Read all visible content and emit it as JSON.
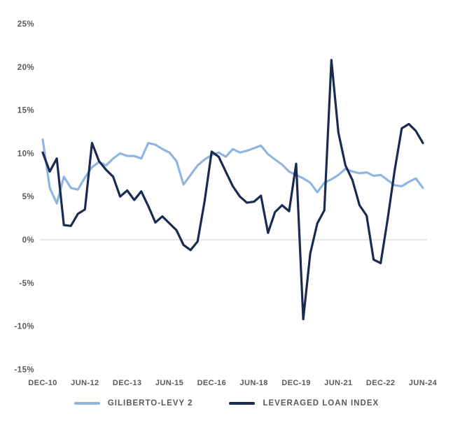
{
  "chart_data": {
    "type": "line",
    "title": "",
    "xlabel": "",
    "ylabel": "",
    "ylim": [
      -15,
      25
    ],
    "y_ticks": [
      25,
      20,
      15,
      10,
      5,
      0,
      -5,
      -10,
      -15
    ],
    "y_tick_suffix": "%",
    "grid": "zero-baseline-only",
    "legend_position": "bottom-center",
    "x_tick_labels": [
      "DEC-10",
      "JUN-12",
      "DEC-13",
      "JUN-15",
      "DEC-16",
      "JUN-18",
      "DEC-19",
      "JUN-21",
      "DEC-22",
      "JUN-24"
    ],
    "x_tick_indices": [
      0,
      6,
      12,
      18,
      24,
      30,
      36,
      42,
      48,
      54
    ],
    "categories": [
      "DEC-10",
      "MAR-11",
      "JUN-11",
      "SEP-11",
      "DEC-11",
      "MAR-12",
      "JUN-12",
      "SEP-12",
      "DEC-12",
      "MAR-13",
      "JUN-13",
      "SEP-13",
      "DEC-13",
      "MAR-14",
      "JUN-14",
      "SEP-14",
      "DEC-14",
      "MAR-15",
      "JUN-15",
      "SEP-15",
      "DEC-15",
      "MAR-16",
      "JUN-16",
      "SEP-16",
      "DEC-16",
      "MAR-17",
      "JUN-17",
      "SEP-17",
      "DEC-17",
      "MAR-18",
      "JUN-18",
      "SEP-18",
      "DEC-18",
      "MAR-19",
      "JUN-19",
      "SEP-19",
      "DEC-19",
      "MAR-20",
      "JUN-20",
      "SEP-20",
      "DEC-20",
      "MAR-21",
      "JUN-21",
      "SEP-21",
      "DEC-21",
      "MAR-22",
      "JUN-22",
      "SEP-22",
      "DEC-22",
      "MAR-23",
      "JUN-23",
      "SEP-23",
      "DEC-23",
      "MAR-24",
      "JUN-24"
    ],
    "series": [
      {
        "name": "GILIBERTO-LEVY 2",
        "color": "#8FB5E1",
        "values": [
          11.6,
          6.0,
          4.2,
          7.3,
          6.0,
          5.8,
          7.2,
          8.4,
          9.0,
          8.6,
          9.4,
          10.0,
          9.7,
          9.7,
          9.4,
          11.2,
          11.0,
          10.5,
          10.1,
          9.1,
          6.4,
          7.5,
          8.6,
          9.3,
          9.8,
          10.1,
          9.6,
          10.5,
          10.1,
          10.3,
          10.6,
          10.9,
          9.9,
          9.3,
          8.7,
          7.9,
          7.5,
          7.1,
          6.6,
          5.5,
          6.6,
          7.0,
          7.5,
          8.2,
          7.9,
          7.7,
          7.8,
          7.4,
          7.5,
          6.9,
          6.3,
          6.2,
          6.7,
          7.1,
          6.0
        ]
      },
      {
        "name": "LEVERAGED LOAN INDEX",
        "color": "#1B2A50",
        "values": [
          10.1,
          7.9,
          9.4,
          1.7,
          1.6,
          3.0,
          3.5,
          11.2,
          9.1,
          8.1,
          7.3,
          5.0,
          5.7,
          4.6,
          5.6,
          3.9,
          2.0,
          2.7,
          1.9,
          1.1,
          -0.6,
          -1.2,
          -0.2,
          4.5,
          10.2,
          9.6,
          7.9,
          6.2,
          5.0,
          4.3,
          4.4,
          5.1,
          0.8,
          3.2,
          4.0,
          3.3,
          8.8,
          -9.2,
          -1.6,
          1.9,
          3.4,
          20.8,
          12.4,
          8.6,
          6.9,
          4.0,
          2.8,
          -2.3,
          -2.7,
          2.4,
          8.1,
          12.9,
          13.4,
          12.6,
          11.2
        ]
      }
    ]
  },
  "styles": {
    "background": "#FFFFFF",
    "label_color": "#58595B",
    "gridline_color": "#E7E7E7"
  }
}
